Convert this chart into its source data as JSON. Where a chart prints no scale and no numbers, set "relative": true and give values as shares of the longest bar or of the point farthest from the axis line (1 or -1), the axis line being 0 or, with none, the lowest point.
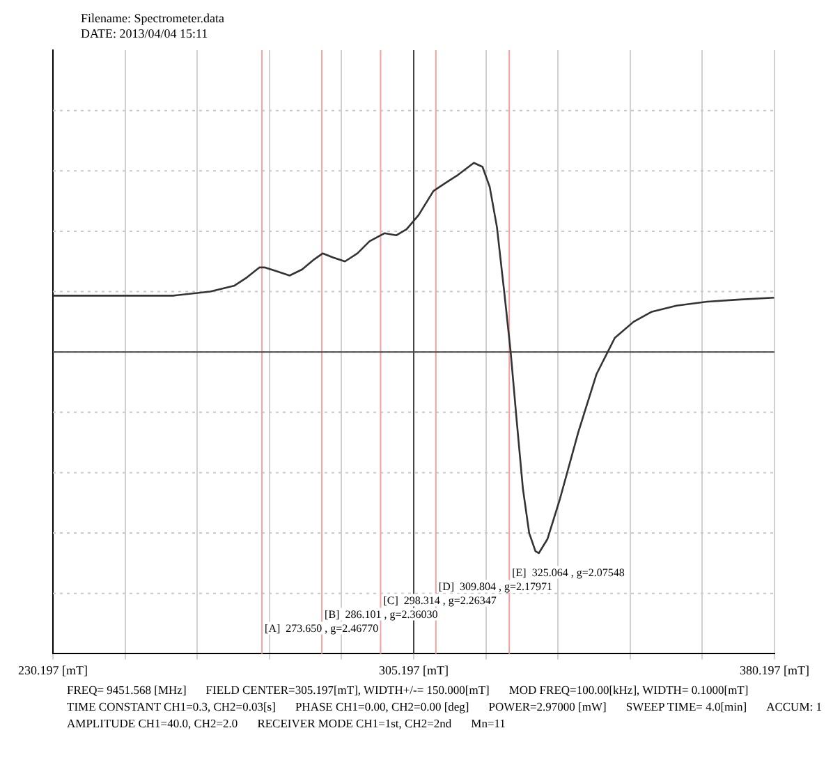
{
  "chart_data": {
    "type": "line",
    "title": "Filename: Spectrometer.data",
    "subtitle": "DATE: 2013/04/04 15:11",
    "relative": true,
    "grid": true,
    "legend": false,
    "marker": "none",
    "line_style": "solid",
    "xlim": [
      230.197,
      380.197
    ],
    "xticks": [
      {
        "value": 230.197,
        "label": "230.197 [mT]"
      },
      {
        "value": 245.197,
        "label": null
      },
      {
        "value": 260.197,
        "label": null
      },
      {
        "value": 275.197,
        "label": null
      },
      {
        "value": 290.197,
        "label": null
      },
      {
        "value": 305.197,
        "label": "305.197 [mT]"
      },
      {
        "value": 320.197,
        "label": null
      },
      {
        "value": 335.197,
        "label": null
      },
      {
        "value": 350.197,
        "label": null
      },
      {
        "value": 365.197,
        "label": null
      },
      {
        "value": 380.197,
        "label": "380.197 [mT]"
      }
    ],
    "tick_labels": "x",
    "series": [
      {
        "color": "#333333",
        "x": [
          230.2,
          242.4,
          255.2,
          262.9,
          267.95,
          270.5,
          273.1,
          274.3,
          276.9,
          279.4,
          282.0,
          284.5,
          286.3,
          288.4,
          290.9,
          293.5,
          296.0,
          299.1,
          301.6,
          303.7,
          306.2,
          309.3,
          311.8,
          314.4,
          317.7,
          319.5,
          321.0,
          322.5,
          324.1,
          325.35,
          326.6,
          327.9,
          329.2,
          330.5,
          331.2,
          333.0,
          335.6,
          339.4,
          343.2,
          347.0,
          350.9,
          354.7,
          359.8,
          366.2,
          372.5,
          380.1
        ],
        "values": [
          0.28,
          0.28,
          0.28,
          0.3,
          0.33,
          0.37,
          0.42,
          0.42,
          0.4,
          0.38,
          0.41,
          0.46,
          0.49,
          0.47,
          0.45,
          0.49,
          0.55,
          0.59,
          0.58,
          0.61,
          0.68,
          0.8,
          0.84,
          0.88,
          0.94,
          0.92,
          0.82,
          0.62,
          0.28,
          0,
          -0.34,
          -0.68,
          -0.9,
          -0.99,
          -1,
          -0.93,
          -0.73,
          -0.4,
          -0.11,
          0.07,
          0.15,
          0.2,
          0.23,
          0.25,
          0.26,
          0.27
        ]
      }
    ],
    "ref_lines": [
      {
        "axis": "x",
        "value": 273.65,
        "label": "[A]  273.650 , g=2.46770",
        "color": "#f4a0a0"
      },
      {
        "axis": "x",
        "value": 286.101,
        "label": "[B]  286.101 , g=2.36030",
        "color": "#f4a0a0"
      },
      {
        "axis": "x",
        "value": 298.314,
        "label": "[C]  298.314 , g=2.26347",
        "color": "#f4a0a0"
      },
      {
        "axis": "x",
        "value": 309.804,
        "label": "[D]  309.804 , g=2.17971",
        "color": "#f4a0a0"
      },
      {
        "axis": "x",
        "value": 325.064,
        "label": "[E]  325.064 , g=2.07548",
        "color": "#f4a0a0"
      },
      {
        "axis": "x",
        "value": 305.197,
        "color": "#444444"
      },
      {
        "axis": "y",
        "value": 0,
        "color": "#444444"
      }
    ],
    "annotations": [
      "FREQ= 9451.568 [MHz]",
      "FIELD CENTER=305.197[mT], WIDTH+/-= 150.000[mT]",
      "MOD FREQ=100.00[kHz], WIDTH=  0.1000[mT]",
      "TIME CONSTANT CH1=0.3, CH2=0.03[s]",
      "PHASE CH1=0.00, CH2=0.00 [deg]",
      "POWER=2.97000 [mW]",
      "SWEEP TIME=  4.0[min]",
      "ACCUM: 1",
      "AMPLITUDE CH1=40.0, CH2=2.0",
      "RECEIVER MODE CH1=1st, CH2=2nd",
      "Mn=11"
    ]
  }
}
